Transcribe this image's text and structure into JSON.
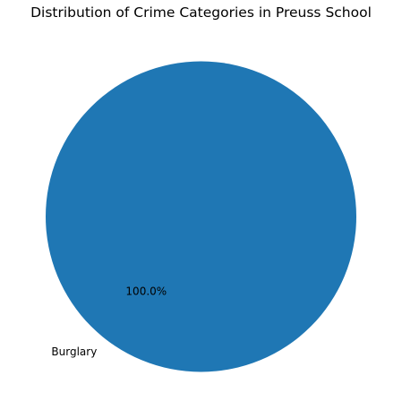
{
  "chart_data": {
    "type": "pie",
    "title": "Distribution of Crime Categories in Preuss School",
    "categories": [
      "Burglary"
    ],
    "values": [
      100.0
    ],
    "percent_labels": [
      "100.0%"
    ],
    "colors": [
      "#1f77b4"
    ],
    "legend": false
  }
}
